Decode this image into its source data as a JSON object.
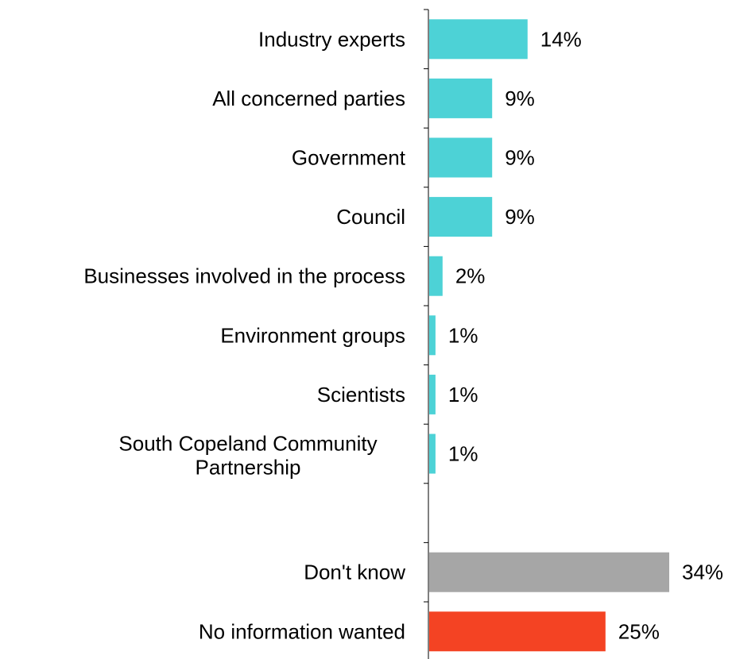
{
  "chart_data": {
    "type": "bar",
    "orientation": "horizontal",
    "title": "",
    "xlabel": "",
    "ylabel": "",
    "grid": false,
    "legend": "none",
    "xlim": [
      0,
      34
    ],
    "categories": [
      "Industry experts",
      "All concerned parties",
      "Government",
      "Council",
      "Businesses involved in the process",
      "Environment groups",
      "Scientists",
      "South Copeland Community Partnership",
      "",
      "Don't know",
      "No information wanted"
    ],
    "label_lines": [
      [
        "Industry experts"
      ],
      [
        "All concerned parties"
      ],
      [
        "Government"
      ],
      [
        "Council"
      ],
      [
        "Businesses involved in the process"
      ],
      [
        "Environment groups"
      ],
      [
        "Scientists"
      ],
      [
        "South Copeland Community",
        "Partnership"
      ],
      [],
      [
        "Don't know"
      ],
      [
        "No information wanted"
      ]
    ],
    "values": [
      14,
      9,
      9,
      9,
      2,
      1,
      1,
      1,
      null,
      34,
      25
    ],
    "value_labels": [
      "14%",
      "9%",
      "9%",
      "9%",
      "2%",
      "1%",
      "1%",
      "1%",
      "",
      "34%",
      "25%"
    ],
    "colors": [
      "#4dd2d6",
      "#4dd2d6",
      "#4dd2d6",
      "#4dd2d6",
      "#4dd2d6",
      "#4dd2d6",
      "#4dd2d6",
      "#4dd2d6",
      "#4dd2d6",
      "#a6a6a6",
      "#f44323"
    ]
  }
}
